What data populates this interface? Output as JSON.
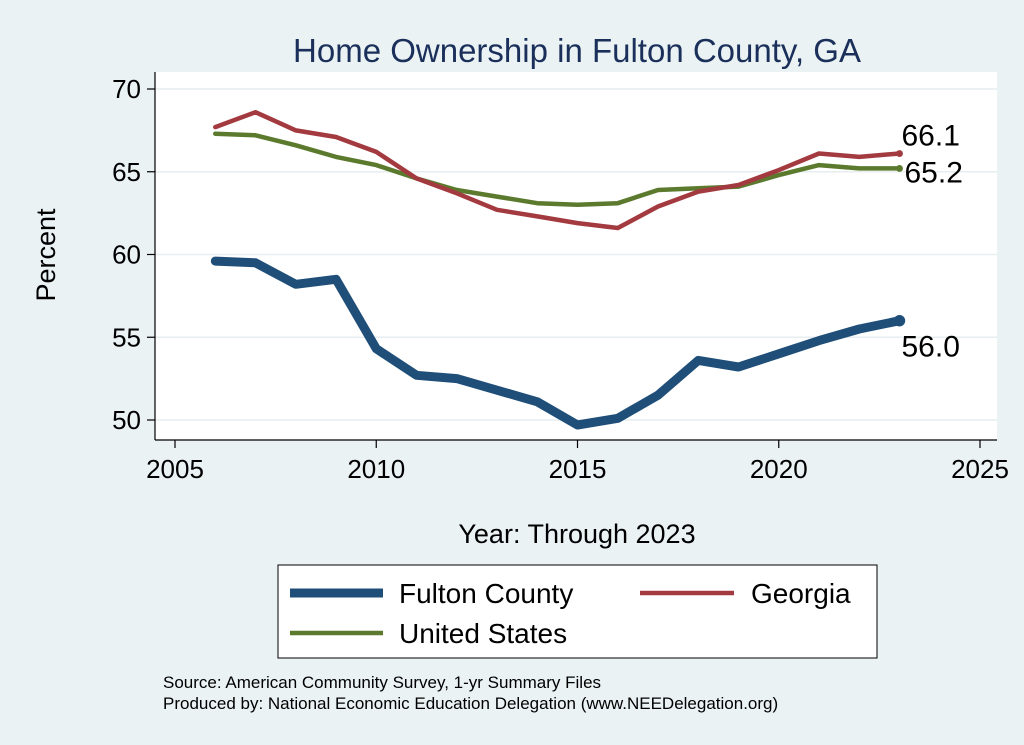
{
  "chart_data": {
    "type": "line",
    "title": "Home Ownership in Fulton County, GA",
    "xlabel": "Year: Through 2023",
    "ylabel": "Percent",
    "xlim": [
      2005,
      2025
    ],
    "ylim": [
      50,
      70
    ],
    "xticks": [
      2005,
      2010,
      2015,
      2020,
      2025
    ],
    "yticks": [
      50,
      55,
      60,
      65,
      70
    ],
    "grid": true,
    "x": [
      2006,
      2007,
      2008,
      2009,
      2010,
      2011,
      2012,
      2013,
      2014,
      2015,
      2016,
      2017,
      2018,
      2019,
      2020,
      2021,
      2022,
      2023
    ],
    "series": [
      {
        "name": "Fulton County",
        "color": "#1f4e79",
        "values": [
          59.6,
          59.5,
          58.2,
          58.5,
          54.3,
          52.7,
          52.5,
          51.8,
          51.1,
          49.7,
          50.1,
          51.5,
          53.6,
          53.2,
          54.0,
          54.8,
          55.5,
          56.0
        ],
        "end_label": "56.0"
      },
      {
        "name": "Georgia",
        "color": "#a33a3f",
        "values": [
          67.7,
          68.6,
          67.5,
          67.1,
          66.2,
          64.6,
          63.7,
          62.7,
          62.3,
          61.9,
          61.6,
          62.9,
          63.8,
          64.2,
          65.1,
          66.1,
          65.9,
          66.1
        ],
        "end_label": "66.1"
      },
      {
        "name": "United States",
        "color": "#5b7a2e",
        "values": [
          67.3,
          67.2,
          66.6,
          65.9,
          65.4,
          64.6,
          63.9,
          63.5,
          63.1,
          63.0,
          63.1,
          63.9,
          64.0,
          64.1,
          64.8,
          65.4,
          65.2,
          65.2
        ],
        "end_label": "65.2"
      }
    ],
    "legend": {
      "placement": "bottom",
      "entries": [
        "Fulton County",
        "Georgia",
        "United States"
      ]
    },
    "notes": [
      "Source: American Community Survey, 1-yr Summary Files",
      "Produced by: National Economic Education Delegation (www.NEEDelegation.org)"
    ]
  }
}
